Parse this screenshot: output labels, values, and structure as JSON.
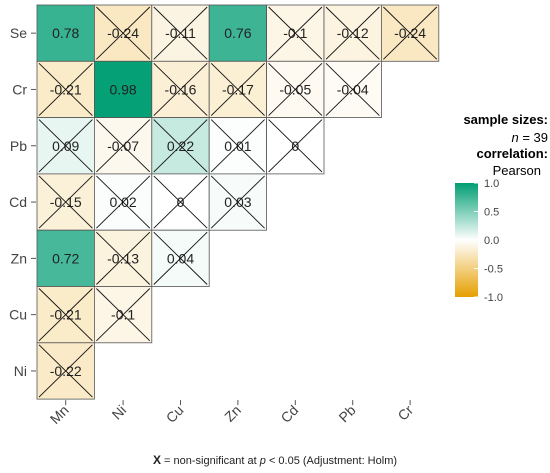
{
  "chart_data": {
    "type": "heatmap",
    "layout": "lower-triangle",
    "row_labels": [
      "Se",
      "Cr",
      "Pb",
      "Cd",
      "Zn",
      "Cu",
      "Ni"
    ],
    "col_labels": [
      "Mn",
      "Ni",
      "Cu",
      "Zn",
      "Cd",
      "Pb",
      "Cr"
    ],
    "cells": [
      [
        "0.78",
        "-0.24",
        "-0.11",
        "0.76",
        "-0.1",
        "-0.12",
        "-0.24"
      ],
      [
        "-0.21",
        "0.98",
        "-0.16",
        "-0.17",
        "-0.05",
        "-0.04"
      ],
      [
        "0.09",
        "-0.07",
        "0.22",
        "0.01",
        "0"
      ],
      [
        "-0.15",
        "0.02",
        "0",
        "0.03"
      ],
      [
        "0.72",
        "-0.13",
        "0.04"
      ],
      [
        "-0.21",
        "-0.1"
      ],
      [
        "-0.22"
      ]
    ],
    "significant": [
      [
        true,
        false,
        false,
        true,
        false,
        false,
        false
      ],
      [
        false,
        true,
        false,
        false,
        false,
        false
      ],
      [
        false,
        false,
        false,
        false,
        false
      ],
      [
        false,
        false,
        false,
        false
      ],
      [
        true,
        false,
        false
      ],
      [
        false,
        false
      ],
      [
        false
      ]
    ],
    "color_scale": {
      "low": "#e69f00",
      "mid": "#ffffff",
      "high": "#009e73",
      "range": [
        -1,
        1
      ]
    },
    "legend": {
      "title_sizes": "sample sizes:",
      "n_label": "n",
      "n_value": "= 39",
      "title_corr": "correlation:",
      "method": "Pearson",
      "ticks": [
        "1.0",
        "0.5",
        "0.0",
        "-0.5",
        "-1.0"
      ],
      "tick_values": [
        1.0,
        0.5,
        0.0,
        -0.5,
        -1.0
      ]
    },
    "caption": {
      "symbol": "X",
      "text_a": " = non-significant at ",
      "p": "p",
      "text_b": " < 0.05 (Adjustment: Holm)"
    }
  }
}
